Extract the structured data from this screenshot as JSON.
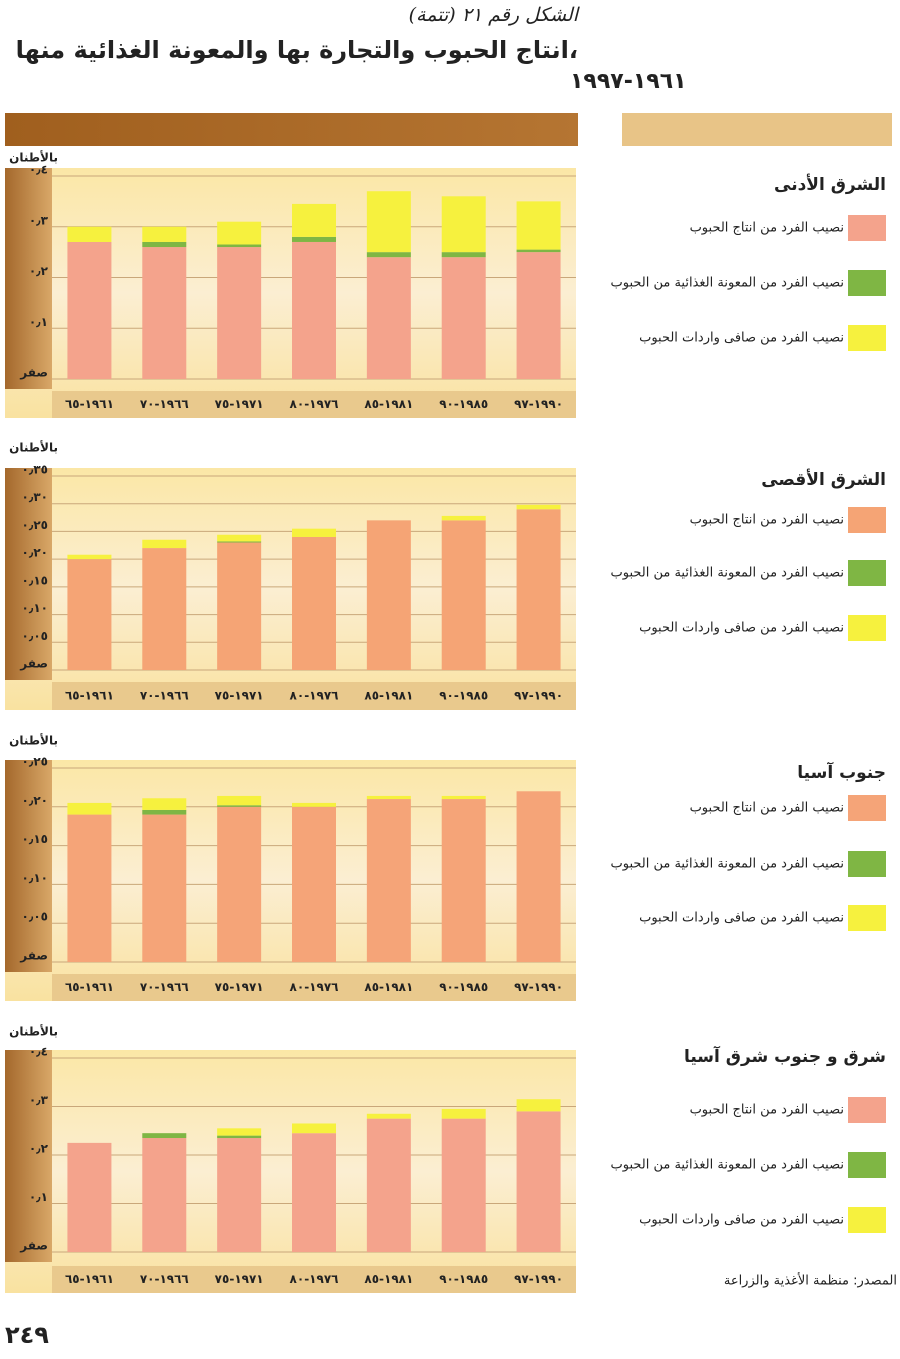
{
  "page": {
    "figure_label": "الشكل رقم ٢١ (تتمة)",
    "title": "انتاج الحبوب والتجارة بها والمعونة الغذائية منها،",
    "subtitle": "١٩٦١-١٩٩٧",
    "source": "المصدر: منظمة الأغذية والزراعة",
    "page_number": "٢٤٩"
  },
  "chart_data": [
    {
      "type": "bar",
      "stacked": true,
      "grid": true,
      "title": "الشرق الأدنى",
      "y_label": "بالأطنان",
      "categories": [
        "١٩٦١-٦٥",
        "١٩٦٦-٧٠",
        "١٩٧١-٧٥",
        "١٩٧٦-٨٠",
        "١٩٨١-٨٥",
        "١٩٨٥-٩٠",
        "١٩٩٠-٩٧"
      ],
      "ylim": [
        0,
        0.4
      ],
      "yticks": [
        {
          "value": 0,
          "label": "صفر"
        },
        {
          "value": 0.1,
          "label": "٠٫١"
        },
        {
          "value": 0.2,
          "label": "٠٫٢"
        },
        {
          "value": 0.3,
          "label": "٠٫٣"
        },
        {
          "value": 0.4,
          "label": "٠٫٤"
        }
      ],
      "series": [
        {
          "name": "نصيب الفرد من انتاج الحبوب",
          "color": "#f4a38c",
          "values": [
            0.27,
            0.26,
            0.26,
            0.27,
            0.24,
            0.24,
            0.25
          ]
        },
        {
          "name": "نصيب الفرد من المعونة الغذائية من الحبوب",
          "color": "#7fb644",
          "values": [
            0,
            0.01,
            0.005,
            0.01,
            0.01,
            0.01,
            0.005
          ]
        },
        {
          "name": "نصيب الفرد من صافى واردات الحبوب",
          "color": "#f6f13e",
          "values": [
            0.03,
            0.03,
            0.045,
            0.065,
            0.12,
            0.11,
            0.095
          ]
        }
      ]
    },
    {
      "type": "bar",
      "stacked": true,
      "grid": true,
      "title": "الشرق الأقصى",
      "y_label": "بالأطنان",
      "categories": [
        "١٩٦١-٦٥",
        "١٩٦٦-٧٠",
        "١٩٧١-٧٥",
        "١٩٧٦-٨٠",
        "١٩٨١-٨٥",
        "١٩٨٥-٩٠",
        "١٩٩٠-٩٧"
      ],
      "ylim": [
        0,
        0.35
      ],
      "yticks": [
        {
          "value": 0,
          "label": "صفر"
        },
        {
          "value": 0.05,
          "label": "٠٫٠٥"
        },
        {
          "value": 0.1,
          "label": "٠٫١٠"
        },
        {
          "value": 0.15,
          "label": "٠٫١٥"
        },
        {
          "value": 0.2,
          "label": "٠٫٢٠"
        },
        {
          "value": 0.25,
          "label": "٠٫٢٥"
        },
        {
          "value": 0.3,
          "label": "٠٫٣٠"
        },
        {
          "value": 0.35,
          "label": "٠٫٣٥"
        }
      ],
      "series": [
        {
          "name": "نصيب الفرد من انتاج الحبوب",
          "color": "#f5a475",
          "values": [
            0.2,
            0.22,
            0.23,
            0.24,
            0.27,
            0.27,
            0.29
          ]
        },
        {
          "name": "نصيب الفرد من المعونة الغذائية من الحبوب",
          "color": "#7fb644",
          "values": [
            0,
            0,
            0.002,
            0,
            0,
            0,
            0
          ]
        },
        {
          "name": "نصيب الفرد من صافى واردات الحبوب",
          "color": "#f6f13e",
          "values": [
            0.008,
            0.015,
            0.012,
            0.015,
            0,
            0.008,
            0.008
          ]
        }
      ]
    },
    {
      "type": "bar",
      "stacked": true,
      "grid": true,
      "title": "جنوب آسيا",
      "y_label": "بالأطنان",
      "categories": [
        "١٩٦١-٦٥",
        "١٩٦٦-٧٠",
        "١٩٧١-٧٥",
        "١٩٧٦-٨٠",
        "١٩٨١-٨٥",
        "١٩٨٥-٩٠",
        "١٩٩٠-٩٧"
      ],
      "ylim": [
        0,
        0.25
      ],
      "yticks": [
        {
          "value": 0,
          "label": "صفر"
        },
        {
          "value": 0.05,
          "label": "٠٫٠٥"
        },
        {
          "value": 0.1,
          "label": "٠٫١٠"
        },
        {
          "value": 0.15,
          "label": "٠٫١٥"
        },
        {
          "value": 0.2,
          "label": "٠٫٢٠"
        },
        {
          "value": 0.25,
          "label": "٠٫٢٥"
        }
      ],
      "series": [
        {
          "name": "نصيب الفرد من انتاج الحبوب",
          "color": "#f5a478",
          "values": [
            0.19,
            0.19,
            0.2,
            0.2,
            0.21,
            0.21,
            0.22
          ]
        },
        {
          "name": "نصيب الفرد من المعونة الغذائية من الحبوب",
          "color": "#7fb644",
          "values": [
            0,
            0.006,
            0.002,
            0,
            0,
            0,
            0
          ]
        },
        {
          "name": "نصيب الفرد من صافى واردات الحبوب",
          "color": "#f6f13e",
          "values": [
            0.015,
            0.015,
            0.012,
            0.005,
            0.004,
            0.004,
            0
          ]
        }
      ]
    },
    {
      "type": "bar",
      "stacked": true,
      "grid": true,
      "title": "شرق و جنوب شرق آسيا",
      "y_label": "بالأطنان",
      "categories": [
        "١٩٦١-٦٥",
        "١٩٦٦-٧٠",
        "١٩٧١-٧٥",
        "١٩٧٦-٨٠",
        "١٩٨١-٨٥",
        "١٩٨٥-٩٠",
        "١٩٩٠-٩٧"
      ],
      "ylim": [
        0,
        0.4
      ],
      "yticks": [
        {
          "value": 0,
          "label": "صفر"
        },
        {
          "value": 0.1,
          "label": "٠٫١"
        },
        {
          "value": 0.2,
          "label": "٠٫٢"
        },
        {
          "value": 0.3,
          "label": "٠٫٣"
        },
        {
          "value": 0.4,
          "label": "٠٫٤"
        }
      ],
      "series": [
        {
          "name": "نصيب الفرد من انتاج الحبوب",
          "color": "#f4a38c",
          "values": [
            0.225,
            0.235,
            0.235,
            0.245,
            0.275,
            0.275,
            0.29
          ]
        },
        {
          "name": "نصيب الفرد من المعونة الغذائية من الحبوب",
          "color": "#7fb644",
          "values": [
            0,
            0.01,
            0.005,
            0,
            0,
            0,
            0
          ]
        },
        {
          "name": "نصيب الفرد من صافى واردات الحبوب",
          "color": "#f6f13e",
          "values": [
            0,
            0,
            0.015,
            0.02,
            0.01,
            0.02,
            0.025
          ]
        }
      ]
    }
  ]
}
